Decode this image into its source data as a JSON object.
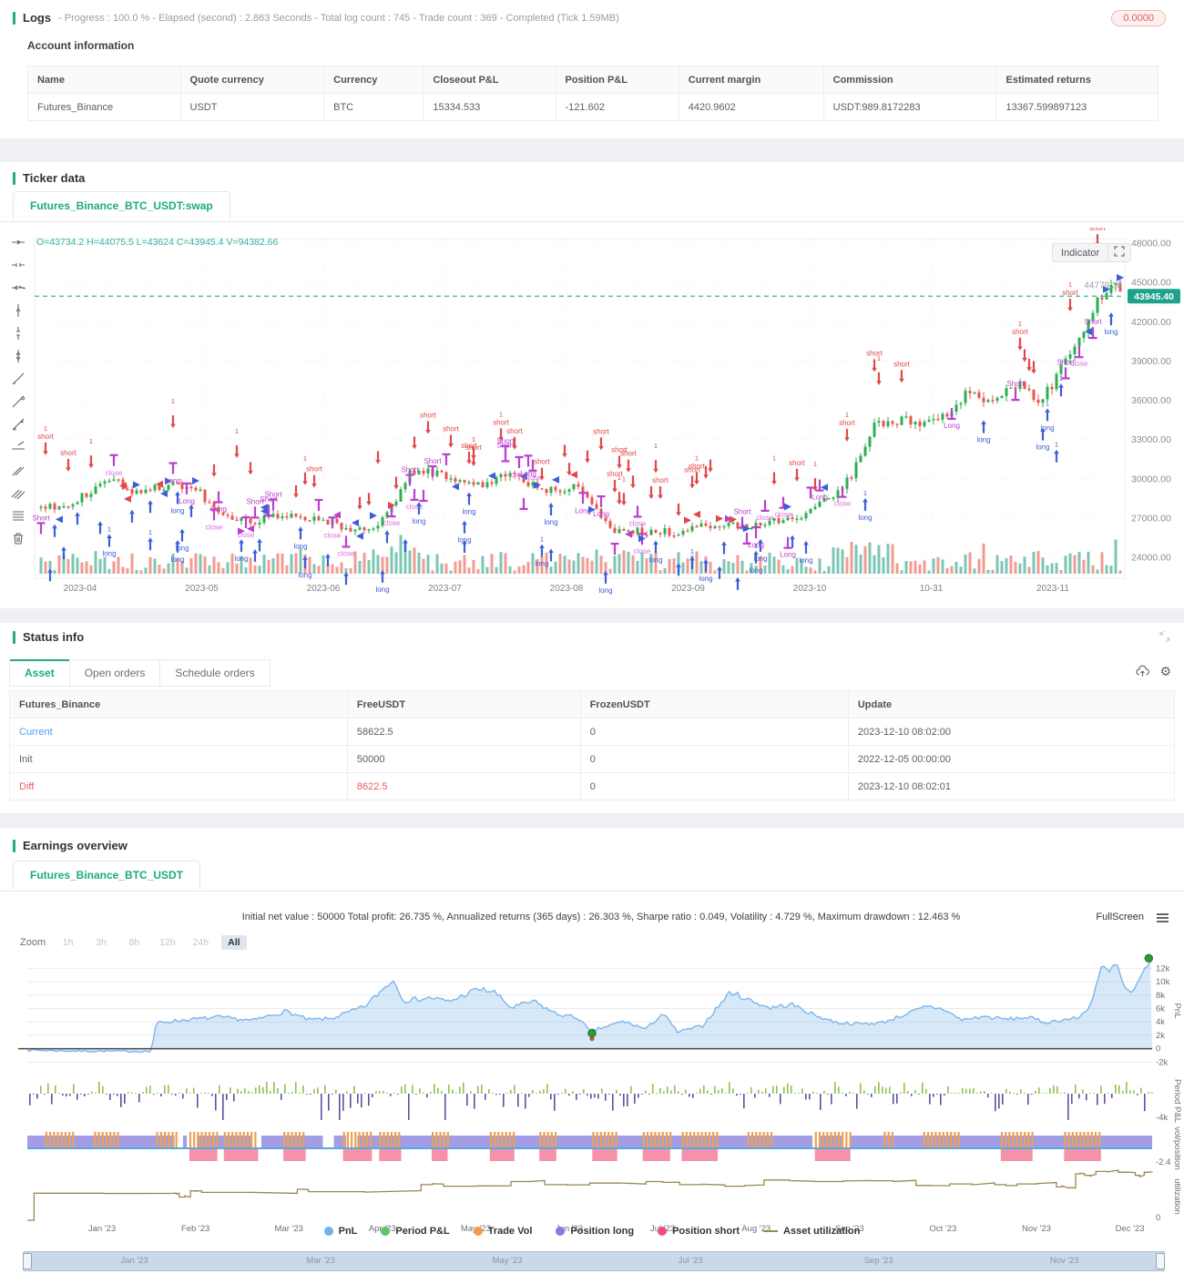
{
  "logs": {
    "title": "Logs",
    "summary": "- Progress : 100.0 % - Elapsed (second) : 2.863  Seconds - Total log count : 745 - Trade count : 369 - Completed (Tick 1.59MB)",
    "badge": "0.0000"
  },
  "account": {
    "title": "Account information",
    "headers": [
      "Name",
      "Quote currency",
      "Currency",
      "Closeout P&L",
      "Position P&L",
      "Current margin",
      "Commission",
      "Estimated returns"
    ],
    "row": [
      "Futures_Binance",
      "USDT",
      "BTC",
      "15334.533",
      "-121.602",
      "4420.9602",
      "USDT:989.8172283",
      "13367.599897123"
    ]
  },
  "ticker": {
    "title": "Ticker data",
    "tab": "Futures_Binance_BTC_USDT:swap",
    "indicator_button": "Indicator",
    "toolbar_icons": [
      "horizontal-line-icon",
      "horizontal-ray-icon",
      "horizontal-extended-line-icon",
      "vertical-line-icon",
      "vertical-ray-icon",
      "vertical-extended-line-icon",
      "trend-line-icon",
      "ray-line-icon",
      "extended-trend-line-icon",
      "price-label-line-icon",
      "parallel-lines-icon",
      "channel-lines-icon",
      "align-list-icon",
      "delete-icon"
    ]
  },
  "status": {
    "title": "Status info",
    "tabs": [
      "Asset",
      "Open orders",
      "Schedule orders"
    ],
    "active_tab": "Asset",
    "headers": [
      "Futures_Binance",
      "FreeUSDT",
      "FrozenUSDT",
      "Update"
    ],
    "rows": [
      {
        "name": "Current",
        "free": "58622.5",
        "frozen": "0",
        "update": "2023-12-10 08:02:00"
      },
      {
        "name": "Init",
        "free": "50000",
        "frozen": "0",
        "update": "2022-12-05 00:00:00"
      },
      {
        "name": "Diff",
        "free": "8622.5",
        "frozen": "0",
        "update": "2023-12-10 08:02:01"
      }
    ]
  },
  "earnings": {
    "title": "Earnings overview",
    "tab": "Futures_Binance_BTC_USDT",
    "stats": "Initial net value : 50000 Total profit: 26.735 %, Annualized returns (365 days) : 26.303 %, Sharpe ratio : 0.049, Volatility : 4.729 %, Maximum drawdown : 12.463 %",
    "fullscreen_label": "FullScreen",
    "zoom_label": "Zoom",
    "zoom_options": [
      "1h",
      "3h",
      "8h",
      "12h",
      "24h",
      "All"
    ],
    "active_zoom": "All",
    "x_labels": [
      "Jan '23",
      "Feb '23",
      "Mar '23",
      "Apr '23",
      "May '23",
      "Jun '23",
      "Jul '23",
      "Aug '23",
      "Sep '23",
      "Oct '23",
      "Nov '23",
      "Dec '23"
    ],
    "navigator_labels": [
      "Jan '23",
      "Mar '23",
      "May '23",
      "Jul '23",
      "Sep '23",
      "Nov '23"
    ],
    "legend": [
      {
        "label": "PnL",
        "color": "#6fb1e8",
        "marker": "circle"
      },
      {
        "label": "Period P&L",
        "color": "#5ec269",
        "marker": "circle"
      },
      {
        "label": "Trade Vol",
        "color": "#f29b4e",
        "marker": "circle"
      },
      {
        "label": "Position long",
        "color": "#7d7ce8",
        "marker": "circle"
      },
      {
        "label": "Position short",
        "color": "#ef4d78",
        "marker": "circle"
      },
      {
        "label": "Asset utilization",
        "color": "#99894d",
        "marker": "line"
      }
    ]
  },
  "chart_data": [
    {
      "id": "btc_candles",
      "type": "candlestick",
      "symbol": "Futures_Binance_BTC_USDT:swap",
      "ohlc_text": "O=43734.2 H=44075.5 L=43624 C=43945.4 V=94382.66",
      "open": 43734.2,
      "high": 44075.5,
      "low": 43624,
      "close": 43945.4,
      "volume": 94382.66,
      "last_price": 43945.4,
      "last_price_label": "43945.40",
      "crosshair_label": "44779.30",
      "ylim": [
        24000,
        48000
      ],
      "y_ticks": [
        {
          "label": "48000.00",
          "value": 48000
        },
        {
          "label": "45000.00",
          "value": 45000
        },
        {
          "label": "42000.00",
          "value": 42000
        },
        {
          "label": "39000.00",
          "value": 39000
        },
        {
          "label": "36000.00",
          "value": 36000
        },
        {
          "label": "33000.00",
          "value": 33000
        },
        {
          "label": "30000.00",
          "value": 30000
        },
        {
          "label": "27000.00",
          "value": 27000
        },
        {
          "label": "24000.00",
          "value": 24000
        }
      ],
      "x_ticks": [
        "2023-04",
        "2023-05",
        "2023-06",
        "2023-07",
        "2023-08",
        "2023-09",
        "2023-10",
        "10-31",
        "2023-11"
      ],
      "price_path": [
        [
          0,
          27800
        ],
        [
          0.033,
          28300
        ],
        [
          0.06,
          30000
        ],
        [
          0.09,
          29000
        ],
        [
          0.12,
          29500
        ],
        [
          0.146,
          29000
        ],
        [
          0.17,
          27200
        ],
        [
          0.2,
          26800
        ],
        [
          0.23,
          27200
        ],
        [
          0.258,
          27000
        ],
        [
          0.28,
          26300
        ],
        [
          0.3,
          25900
        ],
        [
          0.32,
          27100
        ],
        [
          0.34,
          30300
        ],
        [
          0.368,
          30500
        ],
        [
          0.4,
          29400
        ],
        [
          0.43,
          30300
        ],
        [
          0.46,
          29300
        ],
        [
          0.481,
          29200
        ],
        [
          0.5,
          29400
        ],
        [
          0.53,
          26100
        ],
        [
          0.56,
          26000
        ],
        [
          0.592,
          25900
        ],
        [
          0.62,
          26500
        ],
        [
          0.65,
          26300
        ],
        [
          0.68,
          26800
        ],
        [
          0.705,
          27200
        ],
        [
          0.73,
          28500
        ],
        [
          0.75,
          30000
        ],
        [
          0.77,
          33900
        ],
        [
          0.79,
          34500
        ],
        [
          0.816,
          34300
        ],
        [
          0.84,
          35000
        ],
        [
          0.86,
          36800
        ],
        [
          0.88,
          35500
        ],
        [
          0.9,
          37400
        ],
        [
          0.927,
          36000
        ],
        [
          0.94,
          37500
        ],
        [
          0.96,
          40500
        ],
        [
          0.98,
          43500
        ],
        [
          0.995,
          44800
        ],
        [
          1,
          43945
        ]
      ],
      "annotation_labels": [
        "short",
        "long",
        "Short",
        "Long",
        "close",
        "1"
      ],
      "colors": {
        "up": "#2eae51",
        "down": "#e8544e",
        "vol_up": "#7cc6b5",
        "vol_down": "#f29b92",
        "short": "#e14848",
        "long": "#3b5fd9",
        "position": "#b93fd0",
        "close": "#da6fe6",
        "grid": "#ececf0",
        "last_line": "#35b59e"
      }
    },
    {
      "id": "pnl",
      "type": "area",
      "name": "PnL",
      "ylabel": "PnL",
      "line_color": "#7cb5ec",
      "fill_color": "rgba(124,181,236,0.30)",
      "ylim": [
        -2500,
        14500
      ],
      "y_ticks": [
        {
          "label": "12k",
          "value": 12000
        },
        {
          "label": "10k",
          "value": 10000
        },
        {
          "label": "8k",
          "value": 8000
        },
        {
          "label": "6k",
          "value": 6000
        },
        {
          "label": "4k",
          "value": 4000
        },
        {
          "label": "2k",
          "value": 2000
        },
        {
          "label": "0",
          "value": 0
        },
        {
          "label": "-2k",
          "value": -2000
        }
      ],
      "anchors": [
        [
          0,
          -200
        ],
        [
          0.04,
          -350
        ],
        [
          0.11,
          -400
        ],
        [
          0.115,
          3900
        ],
        [
          0.14,
          4300
        ],
        [
          0.17,
          4700
        ],
        [
          0.2,
          4200
        ],
        [
          0.23,
          5600
        ],
        [
          0.25,
          4300
        ],
        [
          0.27,
          4500
        ],
        [
          0.3,
          6300
        ],
        [
          0.325,
          10300
        ],
        [
          0.335,
          7200
        ],
        [
          0.36,
          7600
        ],
        [
          0.375,
          7000
        ],
        [
          0.4,
          8900
        ],
        [
          0.415,
          8500
        ],
        [
          0.43,
          6100
        ],
        [
          0.45,
          7100
        ],
        [
          0.47,
          5200
        ],
        [
          0.49,
          4600
        ],
        [
          0.5,
          2600
        ],
        [
          0.515,
          3300
        ],
        [
          0.53,
          4100
        ],
        [
          0.55,
          2900
        ],
        [
          0.565,
          5300
        ],
        [
          0.578,
          2500
        ],
        [
          0.6,
          3400
        ],
        [
          0.625,
          8500
        ],
        [
          0.64,
          7400
        ],
        [
          0.66,
          6100
        ],
        [
          0.68,
          6600
        ],
        [
          0.7,
          5000
        ],
        [
          0.72,
          3900
        ],
        [
          0.74,
          3700
        ],
        [
          0.76,
          3900
        ],
        [
          0.8,
          6300
        ],
        [
          0.815,
          5900
        ],
        [
          0.83,
          4300
        ],
        [
          0.85,
          4800
        ],
        [
          0.87,
          4400
        ],
        [
          0.89,
          4700
        ],
        [
          0.905,
          3900
        ],
        [
          0.92,
          4300
        ],
        [
          0.935,
          4600
        ],
        [
          0.945,
          6500
        ],
        [
          0.955,
          12200
        ],
        [
          0.962,
          11400
        ],
        [
          0.968,
          12800
        ],
        [
          0.975,
          9200
        ],
        [
          0.982,
          8100
        ],
        [
          0.988,
          9800
        ],
        [
          0.995,
          12500
        ],
        [
          1,
          13600
        ]
      ],
      "markers": [
        [
          0.502,
          2300
        ],
        [
          0.997,
          13500
        ]
      ],
      "marker_color": "#2f9a2f"
    },
    {
      "id": "period_pnl",
      "type": "bar",
      "name": "Period P&L",
      "ylabel": "Period P&L",
      "pos_color": "#8fc152",
      "neg_color": "#5f4f9e",
      "ylim": [
        -4500,
        2200
      ],
      "y_ticks": [
        {
          "label": "-4k",
          "value": -4000
        }
      ]
    },
    {
      "id": "volpos",
      "type": "position-band",
      "name": "vol/position",
      "ylabel": "vol/position",
      "long_color": "#938ce2",
      "short_color": "#f27795",
      "vol_color": "#f0a14e",
      "zero_line_color": "#5ba8de",
      "y_ticks": [
        {
          "label": "-2.4",
          "value": -2.4
        }
      ]
    },
    {
      "id": "util",
      "type": "step-line",
      "name": "Asset utilization",
      "ylabel": "utilization",
      "color": "#99894d",
      "y_ticks": [
        {
          "label": "0",
          "value": 0
        }
      ],
      "anchors": [
        [
          0,
          0
        ],
        [
          0.006,
          0.35
        ],
        [
          0.13,
          0.35
        ],
        [
          0.135,
          0.3
        ],
        [
          0.145,
          0.38
        ],
        [
          0.155,
          0.36
        ],
        [
          0.24,
          0.4
        ],
        [
          0.25,
          0.37
        ],
        [
          0.35,
          0.46
        ],
        [
          0.37,
          0.44
        ],
        [
          0.43,
          0.5
        ],
        [
          0.46,
          0.46
        ],
        [
          0.5,
          0.48
        ],
        [
          0.55,
          0.5
        ],
        [
          0.58,
          0.46
        ],
        [
          0.62,
          0.44
        ],
        [
          0.655,
          0.52
        ],
        [
          0.7,
          0.5
        ],
        [
          0.75,
          0.51
        ],
        [
          0.79,
          0.45
        ],
        [
          0.82,
          0.47
        ],
        [
          0.86,
          0.46
        ],
        [
          0.88,
          0.47
        ],
        [
          0.915,
          0.43
        ],
        [
          0.925,
          0.42
        ],
        [
          0.932,
          0.6
        ],
        [
          0.94,
          0.58
        ],
        [
          0.95,
          0.63
        ],
        [
          0.97,
          0.62
        ],
        [
          0.985,
          0.58
        ],
        [
          0.993,
          0.62
        ],
        [
          1,
          0.62
        ]
      ]
    }
  ]
}
